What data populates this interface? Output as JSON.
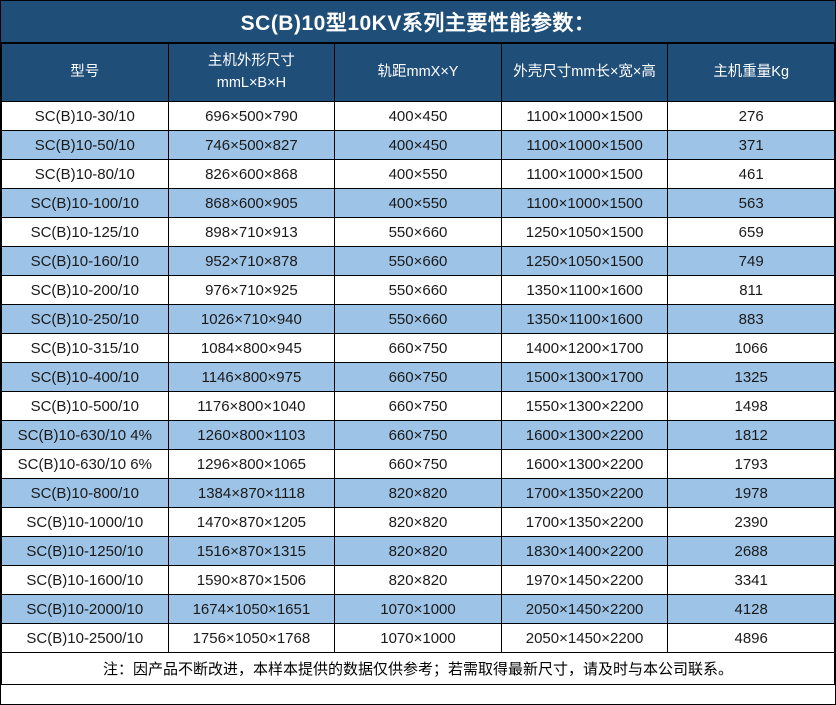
{
  "title": "SC(B)10型10KV系列主要性能参数：",
  "table": {
    "headers": [
      "型号",
      "主机外形尺寸\nmmL×B×H",
      "轨距mmX×Y",
      "外壳尺寸mm长×宽×高",
      "主机重量Kg"
    ],
    "rows": [
      [
        "SC(B)10-30/10",
        "696×500×790",
        "400×450",
        "1100×1000×1500",
        "276"
      ],
      [
        "SC(B)10-50/10",
        "746×500×827",
        "400×450",
        "1100×1000×1500",
        "371"
      ],
      [
        "SC(B)10-80/10",
        "826×600×868",
        "400×550",
        "1100×1000×1500",
        "461"
      ],
      [
        "SC(B)10-100/10",
        "868×600×905",
        "400×550",
        "1100×1000×1500",
        "563"
      ],
      [
        "SC(B)10-125/10",
        "898×710×913",
        "550×660",
        "1250×1050×1500",
        "659"
      ],
      [
        "SC(B)10-160/10",
        "952×710×878",
        "550×660",
        "1250×1050×1500",
        "749"
      ],
      [
        "SC(B)10-200/10",
        "976×710×925",
        "550×660",
        "1350×1100×1600",
        "811"
      ],
      [
        "SC(B)10-250/10",
        "1026×710×940",
        "550×660",
        "1350×1100×1600",
        "883"
      ],
      [
        "SC(B)10-315/10",
        "1084×800×945",
        "660×750",
        "1400×1200×1700",
        "1066"
      ],
      [
        "SC(B)10-400/10",
        "1146×800×975",
        "660×750",
        "1500×1300×1700",
        "1325"
      ],
      [
        "SC(B)10-500/10",
        "1176×800×1040",
        "660×750",
        "1550×1300×2200",
        "1498"
      ],
      [
        "SC(B)10-630/10 4%",
        "1260×800×1103",
        "660×750",
        "1600×1300×2200",
        "1812"
      ],
      [
        "SC(B)10-630/10 6%",
        "1296×800×1065",
        "660×750",
        "1600×1300×2200",
        "1793"
      ],
      [
        "SC(B)10-800/10",
        "1384×870×1118",
        "820×820",
        "1700×1350×2200",
        "1978"
      ],
      [
        "SC(B)10-1000/10",
        "1470×870×1205",
        "820×820",
        "1700×1350×2200",
        "2390"
      ],
      [
        "SC(B)10-1250/10",
        "1516×870×1315",
        "820×820",
        "1830×1400×2200",
        "2688"
      ],
      [
        "SC(B)10-1600/10",
        "1590×870×1506",
        "820×820",
        "1970×1450×2200",
        "3341"
      ],
      [
        "SC(B)10-2000/10",
        "1674×1050×1651",
        "1070×1000",
        "2050×1450×2200",
        "4128"
      ],
      [
        "SC(B)10-2500/10",
        "1756×1050×1768",
        "1070×1000",
        "2050×1450×2200",
        "4896"
      ]
    ],
    "note": "注：因产品不断改进，本样本提供的数据仅供参考；若需取得最新尺寸，请及时与本公司联系。"
  },
  "colors": {
    "header_bg": "#1F4E79",
    "stripe_bg": "#9DC3E6",
    "row_bg": "#FFFFFF",
    "border": "#000000",
    "header_text": "#FFFFFF",
    "body_text": "#1A1A1A"
  }
}
